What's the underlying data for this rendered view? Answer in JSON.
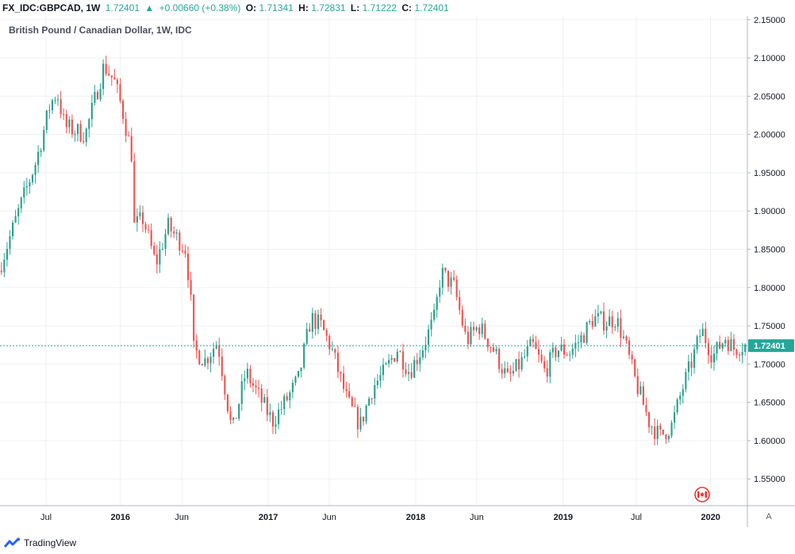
{
  "header": {
    "symbol": "FX_IDC:GBPCAD, 1W",
    "last": "1.72401",
    "change": "+0.00660 (+0.38%)",
    "open_label": "O:",
    "open": "1.71341",
    "high_label": "H:",
    "high": "1.72831",
    "low_label": "L:",
    "low": "1.71222",
    "close_label": "C:",
    "close": "1.72401"
  },
  "series_title": "British Pound / Canadian Dollar, 1W, IDC",
  "price_label": "1.72401",
  "auto_button": "A",
  "footer": {
    "brand": "TradingView"
  },
  "colors": {
    "up": "#26a69a",
    "down": "#ef5350",
    "up_body": "#2e9e8e",
    "down_body": "#ef5350",
    "price_line": "#26a69a",
    "grid": "#eef0f3",
    "axis_text": "#131722",
    "flag": "#e53935"
  },
  "icons": {
    "flag": "canada-flag-icon",
    "logo": "tradingview-logo-icon",
    "change_arrow": "triangle-up-icon"
  },
  "chart_data": {
    "type": "candlestick",
    "title": "British Pound / Canadian Dollar, 1W, IDC",
    "y_axis_position": "right",
    "ylim": [
      1.515,
      2.155
    ],
    "y_ticks": [
      "2.15000",
      "2.10000",
      "2.05000",
      "2.00000",
      "1.95000",
      "1.90000",
      "1.85000",
      "1.80000",
      "1.75000",
      "1.70000",
      "1.65000",
      "1.60000",
      "1.55000"
    ],
    "x_ticks": [
      "Jul",
      "2016",
      "Jun",
      "2017",
      "Jun",
      "2018",
      "Jun",
      "2019",
      "Jul",
      "2020"
    ],
    "x_tick_dates": [
      "2015-07-01",
      "2016-01-01",
      "2016-06-01",
      "2017-01-01",
      "2017-06-01",
      "2018-01-01",
      "2018-06-01",
      "2019-01-01",
      "2019-07-01",
      "2020-01-01"
    ],
    "x_range": [
      "2015-03-09",
      "2020-04-01"
    ],
    "last_price": 1.72401,
    "grid": true,
    "legend": "none",
    "path_anchors": [
      [
        "2015-03-09",
        1.822
      ],
      [
        "2015-05-01",
        1.905
      ],
      [
        "2015-06-10",
        1.965
      ],
      [
        "2015-07-15",
        2.04
      ],
      [
        "2015-08-01",
        2.055
      ],
      [
        "2015-08-20",
        2.01
      ],
      [
        "2015-10-10",
        2.0
      ],
      [
        "2015-11-25",
        2.09
      ],
      [
        "2015-12-20",
        2.07
      ],
      [
        "2016-01-08",
        2.035
      ],
      [
        "2016-02-01",
        1.975
      ],
      [
        "2016-02-08",
        1.88
      ],
      [
        "2016-03-01",
        1.89
      ],
      [
        "2016-04-01",
        1.83
      ],
      [
        "2016-05-01",
        1.88
      ],
      [
        "2016-06-15",
        1.85
      ],
      [
        "2016-06-27",
        1.78
      ],
      [
        "2016-07-01",
        1.72
      ],
      [
        "2016-08-01",
        1.705
      ],
      [
        "2016-09-01",
        1.73
      ],
      [
        "2016-10-07",
        1.61
      ],
      [
        "2016-11-10",
        1.69
      ],
      [
        "2016-12-10",
        1.66
      ],
      [
        "2017-01-15",
        1.625
      ],
      [
        "2017-02-15",
        1.65
      ],
      [
        "2017-03-20",
        1.68
      ],
      [
        "2017-04-20",
        1.76
      ],
      [
        "2017-05-15",
        1.75
      ],
      [
        "2017-06-10",
        1.72
      ],
      [
        "2017-07-20",
        1.65
      ],
      [
        "2017-08-20",
        1.62
      ],
      [
        "2017-09-20",
        1.67
      ],
      [
        "2017-10-20",
        1.69
      ],
      [
        "2017-11-20",
        1.72
      ],
      [
        "2017-12-20",
        1.69
      ],
      [
        "2018-01-20",
        1.72
      ],
      [
        "2018-02-20",
        1.76
      ],
      [
        "2018-03-08",
        1.82
      ],
      [
        "2018-04-10",
        1.8
      ],
      [
        "2018-05-10",
        1.73
      ],
      [
        "2018-06-10",
        1.75
      ],
      [
        "2018-07-15",
        1.72
      ],
      [
        "2018-08-20",
        1.68
      ],
      [
        "2018-09-20",
        1.7
      ],
      [
        "2018-10-20",
        1.725
      ],
      [
        "2018-11-20",
        1.69
      ],
      [
        "2018-12-20",
        1.72
      ],
      [
        "2019-01-20",
        1.715
      ],
      [
        "2019-02-20",
        1.735
      ],
      [
        "2019-03-20",
        1.76
      ],
      [
        "2019-04-20",
        1.755
      ],
      [
        "2019-05-15",
        1.76
      ],
      [
        "2019-06-05",
        1.73
      ],
      [
        "2019-07-01",
        1.68
      ],
      [
        "2019-08-05",
        1.625
      ],
      [
        "2019-09-01",
        1.605
      ],
      [
        "2019-10-01",
        1.62
      ],
      [
        "2019-10-25",
        1.665
      ],
      [
        "2019-11-20",
        1.705
      ],
      [
        "2019-12-13",
        1.745
      ],
      [
        "2020-01-10",
        1.71
      ],
      [
        "2020-02-10",
        1.735
      ],
      [
        "2020-03-01",
        1.72
      ],
      [
        "2020-03-20",
        1.724
      ]
    ]
  }
}
